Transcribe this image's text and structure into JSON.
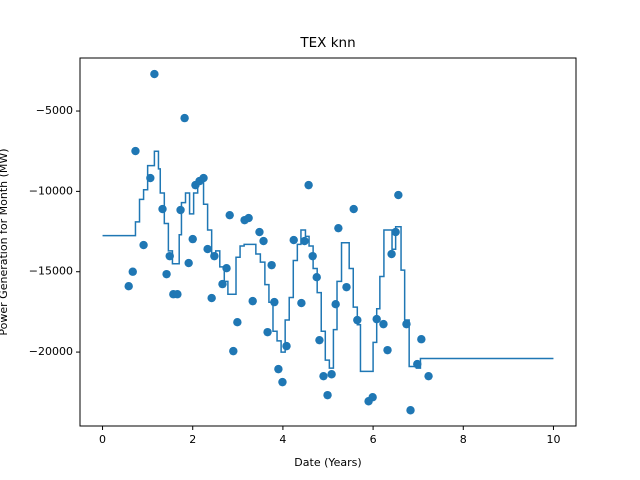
{
  "chart_data": {
    "type": "scatter-step",
    "title": "TEX knn",
    "x_label": "Date (Years)",
    "y_label": "Power Generation for Month (MW)",
    "xlim": [
      -0.5,
      10.5
    ],
    "ylim": [
      -24600,
      -1700
    ],
    "xticks": [
      0,
      2,
      4,
      6,
      8,
      10
    ],
    "yticks": [
      {
        "value": -5000,
        "label": "−5000"
      },
      {
        "value": -10000,
        "label": "−10000"
      },
      {
        "value": -15000,
        "label": "−15000"
      },
      {
        "value": -20000,
        "label": "−20000"
      }
    ],
    "grid": false,
    "points": {
      "color": "#1f77b4",
      "x": [
        0.58,
        0.67,
        0.73,
        0.91,
        1.06,
        1.15,
        1.33,
        1.42,
        1.49,
        1.57,
        1.66,
        1.73,
        1.82,
        1.91,
        2.0,
        2.06,
        2.15,
        2.24,
        2.33,
        2.42,
        2.48,
        2.66,
        2.75,
        2.82,
        2.9,
        2.99,
        3.15,
        3.24,
        3.33,
        3.48,
        3.57,
        3.66,
        3.75,
        3.81,
        3.9,
        3.99,
        4.08,
        4.24,
        4.41,
        4.48,
        4.57,
        4.66,
        4.75,
        4.81,
        4.9,
        4.99,
        5.08,
        5.17,
        5.23,
        5.41,
        5.57,
        5.65,
        5.9,
        5.99,
        6.08,
        6.23,
        6.32,
        6.41,
        6.5,
        6.56,
        6.74,
        6.83,
        6.98,
        7.07,
        7.23
      ],
      "y": [
        -15900,
        -15000,
        -7490,
        -13340,
        -9170,
        -2700,
        -11100,
        -15150,
        -14030,
        -16400,
        -16400,
        -11160,
        -5440,
        -14460,
        -12970,
        -9610,
        -9360,
        -9170,
        -13590,
        -16640,
        -14030,
        -15770,
        -14780,
        -11480,
        -19940,
        -18140,
        -11790,
        -11660,
        -16830,
        -12530,
        -13090,
        -18760,
        -14590,
        -16890,
        -21060,
        -21870,
        -19630,
        -13030,
        -16950,
        -13090,
        -9610,
        -14030,
        -15340,
        -19260,
        -21500,
        -22680,
        -21380,
        -17020,
        -12290,
        -15960,
        -11100,
        -18010,
        -23060,
        -22810,
        -17950,
        -18260,
        -19880,
        -13900,
        -12530,
        -10230,
        -18260,
        -23620,
        -20750,
        -19200,
        -21500
      ]
    },
    "line": {
      "color": "#1f77b4",
      "drawstyle": "steps-post",
      "x": [
        0,
        0.73,
        0.82,
        0.91,
        1.0,
        1.15,
        1.24,
        1.28,
        1.37,
        1.46,
        1.55,
        1.7,
        1.75,
        1.84,
        1.93,
        2.02,
        2.11,
        2.24,
        2.33,
        2.42,
        2.51,
        2.6,
        2.7,
        2.78,
        2.96,
        3.05,
        3.14,
        3.4,
        3.5,
        3.6,
        3.69,
        3.78,
        3.87,
        3.96,
        4.05,
        4.14,
        4.23,
        4.32,
        4.4,
        4.5,
        4.58,
        4.67,
        4.76,
        4.85,
        4.94,
        5.03,
        5.12,
        5.2,
        5.3,
        5.47,
        5.56,
        5.65,
        5.72,
        6.0,
        6.08,
        6.15,
        6.24,
        6.42,
        6.5,
        6.62,
        6.7,
        6.8,
        6.96,
        7.05,
        10
      ],
      "y": [
        -12750,
        -11900,
        -10500,
        -9900,
        -8400,
        -7500,
        -8600,
        -10100,
        -12000,
        -13700,
        -14500,
        -12700,
        -10700,
        -10100,
        -11400,
        -10100,
        -9400,
        -10800,
        -12400,
        -14100,
        -13700,
        -14700,
        -15600,
        -16400,
        -14100,
        -13400,
        -13300,
        -13900,
        -14400,
        -15800,
        -16900,
        -18700,
        -19300,
        -20000,
        -18000,
        -16600,
        -14300,
        -13300,
        -12400,
        -12800,
        -13400,
        -14800,
        -16300,
        -18700,
        -20500,
        -21000,
        -18600,
        -15600,
        -13200,
        -14800,
        -17200,
        -18300,
        -21200,
        -19400,
        -17300,
        -15300,
        -12400,
        -13600,
        -12200,
        -14900,
        -18000,
        -20900,
        -21000,
        -20400,
        -20400
      ]
    }
  }
}
